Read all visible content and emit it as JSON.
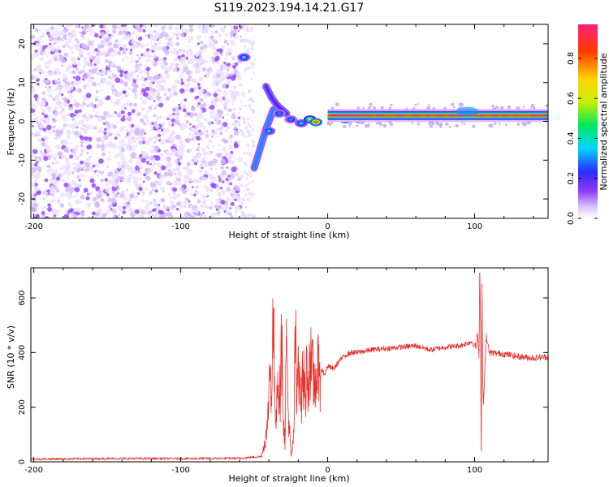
{
  "title": "S119.2023.194.14.21.G17",
  "colors": {
    "snr_line": "#e8302c",
    "spec_dots": "#8a2be2",
    "colormap": [
      "#ffffff",
      "#d8c2ff",
      "#8f3cff",
      "#2a2aff",
      "#00d7ff",
      "#00e85a",
      "#c8f000",
      "#ffd200",
      "#ff3a00",
      "#ff1e7a"
    ]
  },
  "chart_data": [
    {
      "type": "heatmap",
      "title": "S119.2023.194.14.21.G17",
      "xlabel": "Height of straight line (km)",
      "ylabel": "Frequency (Hz)",
      "xlim": [
        -202,
        150
      ],
      "ylim": [
        -25,
        25
      ],
      "xticks": [
        -200,
        -100,
        0,
        100
      ],
      "yticks": [
        -20,
        -10,
        0,
        10,
        20
      ],
      "colorbar": {
        "label": "Normalized spectral amplitude",
        "range": [
          0,
          0.97
        ],
        "ticks": [
          0.0,
          0.2,
          0.4,
          0.6,
          0.8
        ]
      },
      "noise_region": {
        "x": [
          -202,
          -59
        ],
        "y": [
          -25,
          25
        ],
        "typical_amplitude": 0.08
      },
      "features": [
        {
          "kind": "noise_decay",
          "x": [
            -59,
            -50
          ],
          "y": [
            -25,
            25
          ]
        },
        {
          "kind": "blob",
          "x": -57,
          "y": 16.5,
          "amplitude": 0.35
        },
        {
          "kind": "branch",
          "points": [
            [
              -50,
              -12
            ],
            [
              -46,
              -7
            ],
            [
              -42,
              -2
            ],
            [
              -37,
              3
            ]
          ],
          "amplitude": 0.3
        },
        {
          "kind": "branch",
          "points": [
            [
              -42,
              9
            ],
            [
              -38,
              6
            ],
            [
              -34,
              4
            ],
            [
              -28,
              2
            ]
          ],
          "amplitude": 0.2
        },
        {
          "kind": "blob",
          "x": -40,
          "y": -2.5,
          "amplitude": 0.35
        },
        {
          "kind": "blob",
          "x": -33,
          "y": 2,
          "amplitude": 0.3
        },
        {
          "kind": "blob",
          "x": -25,
          "y": 0.5,
          "amplitude": 0.3
        },
        {
          "kind": "blob",
          "x": -18,
          "y": -0.5,
          "amplitude": 0.35
        },
        {
          "kind": "blob",
          "x": -12,
          "y": 0.5,
          "amplitude": 0.6
        },
        {
          "kind": "blob",
          "x": -8,
          "y": -0.2,
          "amplitude": 0.8
        },
        {
          "kind": "blob",
          "x": 6,
          "y": 1.5,
          "amplitude": 0.85
        },
        {
          "kind": "blob",
          "x": 12,
          "y": 0.5,
          "amplitude": 0.85
        },
        {
          "kind": "blob",
          "x": 22,
          "y": 0.5,
          "amplitude": 0.9
        },
        {
          "kind": "carrier_line",
          "x": [
            0,
            150
          ],
          "y": 1.5,
          "amplitude": 0.97
        },
        {
          "kind": "broadening",
          "x": 95,
          "y": 2.5,
          "amplitude": 0.3
        }
      ]
    },
    {
      "type": "line",
      "title": "",
      "xlabel": "Height of straight line (km)",
      "ylabel": "SNR (10 * v/v)",
      "xlim": [
        -202,
        150
      ],
      "ylim": [
        0,
        710
      ],
      "xticks": [
        -200,
        -100,
        0,
        100
      ],
      "yticks": [
        0,
        200,
        400,
        600
      ],
      "series": [
        {
          "x": [
            -202,
            -150,
            -100,
            -60,
            -45,
            -41,
            -40,
            -39,
            -38,
            -37,
            -36,
            -35,
            -34,
            -33,
            -32,
            -31,
            -30,
            -29,
            -28,
            -27,
            -26,
            -25,
            -24,
            -23,
            -22,
            -21,
            -20,
            -19,
            -18,
            -17,
            -16,
            -15,
            -14,
            -13,
            -12,
            -11,
            -10,
            -9,
            -8,
            -7,
            -6,
            -5,
            -4,
            -2,
            0,
            4,
            8,
            12,
            16,
            20,
            25,
            30,
            40,
            50,
            60,
            70,
            80,
            90,
            98,
            101,
            102,
            103,
            103.5,
            104,
            104.5,
            105,
            105.5,
            106,
            107,
            108,
            110,
            120,
            130,
            140,
            150
          ],
          "y": [
            10,
            12,
            12,
            13,
            20,
            120,
            280,
            350,
            250,
            560,
            200,
            190,
            330,
            240,
            270,
            500,
            130,
            80,
            460,
            200,
            120,
            20,
            40,
            120,
            480,
            180,
            410,
            350,
            210,
            330,
            280,
            250,
            360,
            300,
            400,
            310,
            320,
            270,
            340,
            250,
            430,
            300,
            340,
            320,
            350,
            340,
            370,
            390,
            400,
            400,
            405,
            410,
            415,
            420,
            425,
            410,
            420,
            425,
            440,
            420,
            470,
            380,
            690,
            520,
            40,
            650,
            300,
            210,
            350,
            460,
            400,
            395,
            385,
            380,
            385
          ]
        }
      ]
    }
  ]
}
